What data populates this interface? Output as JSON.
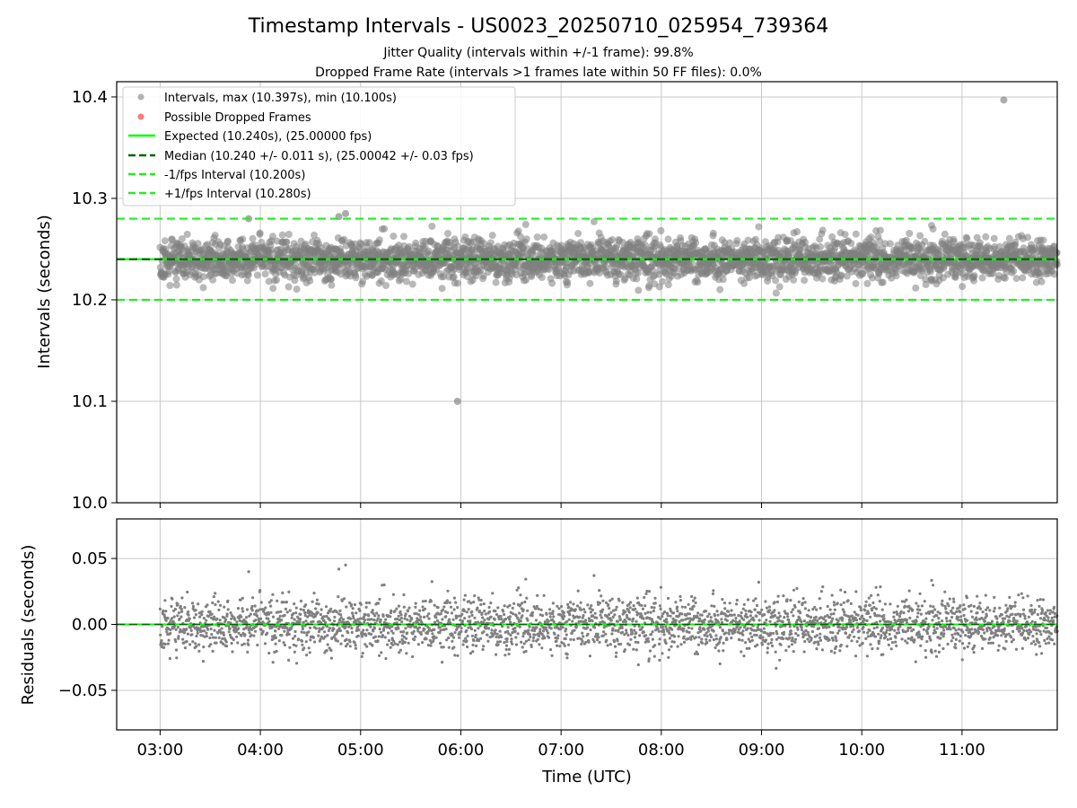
{
  "figure": {
    "title": "Timestamp Intervals - US0023_20250710_025954_739364",
    "subtitle_1": "Jitter Quality (intervals within +/-1 frame): 99.8%",
    "subtitle_2": "Dropped Frame Rate (intervals >1 frames late within 50 FF files): 0.0%"
  },
  "colors": {
    "points": "#808080",
    "dropped": "#ff6b6b",
    "expected": "#00ff00",
    "median": "#006400",
    "bounds": "#22ee22",
    "grid": "#c8c8c8"
  },
  "chart_data": [
    {
      "type": "scatter",
      "panel": "intervals",
      "ylabel": "Intervals (seconds)",
      "xlim": [
        "02:34",
        "11:57"
      ],
      "ylim": [
        10.0,
        10.415
      ],
      "yticks": [
        10.0,
        10.1,
        10.2,
        10.3,
        10.4
      ],
      "ytick_labels": [
        "10.0",
        "10.1",
        "10.2",
        "10.3",
        "10.4"
      ],
      "grid": true,
      "legend_position": "upper-left",
      "legend": [
        "Intervals, max (10.397s), min (10.100s)",
        "Possible Dropped Frames",
        "Expected (10.240s), (25.00000 fps)",
        "Median (10.240 +/- 0.011 s), (25.00042 +/- 0.03 fps)",
        "-1/fps Interval (10.200s)",
        "+1/fps Interval (10.280s)"
      ],
      "series": [
        {
          "name": "Intervals, max (10.397s), min (10.100s)",
          "x_range": [
            "03:00",
            "11:57"
          ],
          "center": 10.24,
          "std": 0.011,
          "count": 3100
        },
        {
          "name": "Possible Dropped Frames",
          "x": [],
          "y": []
        }
      ],
      "notable_points": [
        {
          "x": "05:58",
          "y": 10.1
        },
        {
          "x": "11:25",
          "y": 10.397
        },
        {
          "x": "04:51",
          "y": 10.285
        },
        {
          "x": "04:47",
          "y": 10.282
        },
        {
          "x": "03:53",
          "y": 10.28
        }
      ],
      "lines": [
        {
          "name": "Expected (10.240s), (25.00000 fps)",
          "y": 10.24,
          "style": "solid"
        },
        {
          "name": "Median (10.240 +/- 0.011 s), (25.00042 +/- 0.03 fps)",
          "y": 10.24,
          "style": "dashed"
        },
        {
          "name": "-1/fps Interval (10.200s)",
          "y": 10.2,
          "style": "dashed"
        },
        {
          "name": "+1/fps Interval (10.280s)",
          "y": 10.28,
          "style": "dashed"
        }
      ]
    },
    {
      "type": "scatter",
      "panel": "residuals",
      "xlabel": "Time (UTC)",
      "ylabel": "Residuals (seconds)",
      "xlim": [
        "02:34",
        "11:57"
      ],
      "ylim": [
        -0.08,
        0.08
      ],
      "yticks": [
        -0.05,
        0.0,
        0.05
      ],
      "ytick_labels": [
        "−0.05",
        "0.00",
        "0.05"
      ],
      "xticks": [
        "03:00",
        "04:00",
        "05:00",
        "06:00",
        "07:00",
        "08:00",
        "09:00",
        "10:00",
        "11:00"
      ],
      "grid": true,
      "series": [
        {
          "name": "Residuals",
          "x_range": [
            "03:00",
            "11:57"
          ],
          "center": 0.0,
          "std": 0.011,
          "count": 3100
        }
      ],
      "lines": [
        {
          "name": "zero",
          "y": 0.0,
          "style": "dashed"
        }
      ]
    }
  ]
}
